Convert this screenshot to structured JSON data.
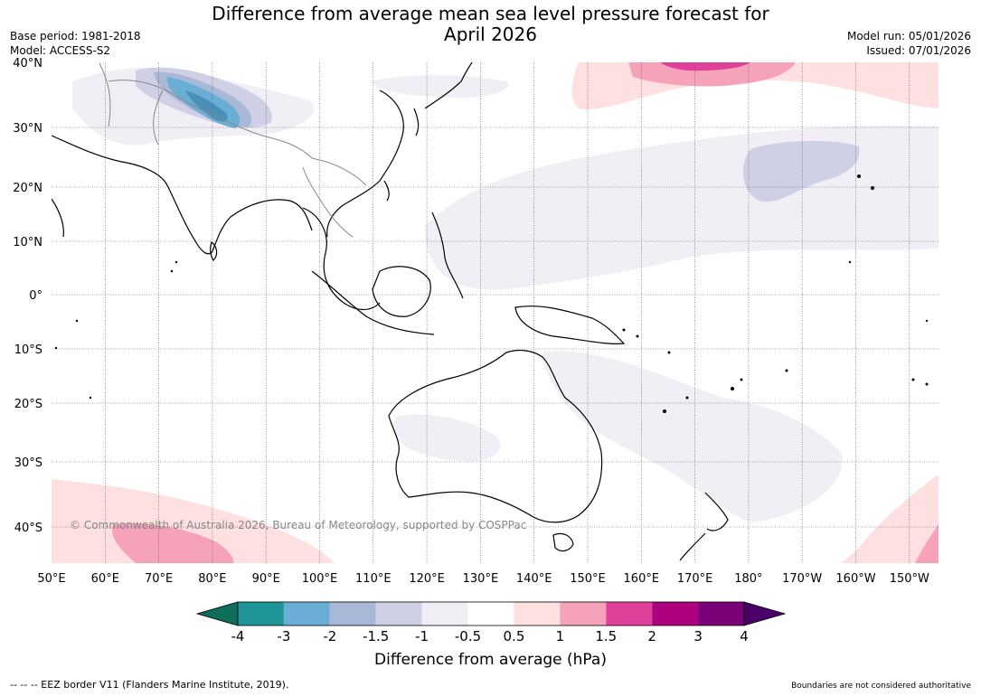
{
  "title_line1": "Difference from average mean sea level pressure forecast for",
  "title_line2": "April 2026",
  "base_period": "Base period: 1981-2018",
  "model": "Model: ACCESS-S2",
  "model_run": "Model run: 05/01/2026",
  "issued": "Issued: 07/01/2026",
  "copyright": "© Commonwealth of Australia 2026, Bureau of Meteorology, supported by COSPPac",
  "lat_labels": [
    "40°N",
    "30°N",
    "20°N",
    "10°N",
    "0°",
    "10°S",
    "20°S",
    "30°S",
    "40°S"
  ],
  "lon_labels": [
    "50°E",
    "60°E",
    "70°E",
    "80°E",
    "90°E",
    "100°E",
    "110°E",
    "120°E",
    "130°E",
    "140°E",
    "150°E",
    "160°E",
    "170°E",
    "180°",
    "170°W",
    "160°W",
    "150°W"
  ],
  "colorbar": {
    "title": "Difference from average (hPa)",
    "tick_labels": [
      "-4",
      "-3",
      "-2",
      "-1.5",
      "-1",
      "-0.5",
      "0.5",
      "1",
      "1.5",
      "2",
      "3",
      "4"
    ],
    "colors": {
      "below_min": "#0d6e5c",
      "bins": [
        "#1f9499",
        "#6aaed6",
        "#a8b9d8",
        "#cfd0e5",
        "#f2eef6",
        "#ffffff",
        "#fde0df",
        "#f7a2bb",
        "#e03f9a",
        "#ad017e",
        "#7a0177"
      ],
      "above_max": "#4b0069"
    }
  },
  "footer_left": "--  --  -- EEZ border V11 (Flanders Marine Institute, 2019).",
  "footer_right": "Boundaries are not considered authoritative"
}
